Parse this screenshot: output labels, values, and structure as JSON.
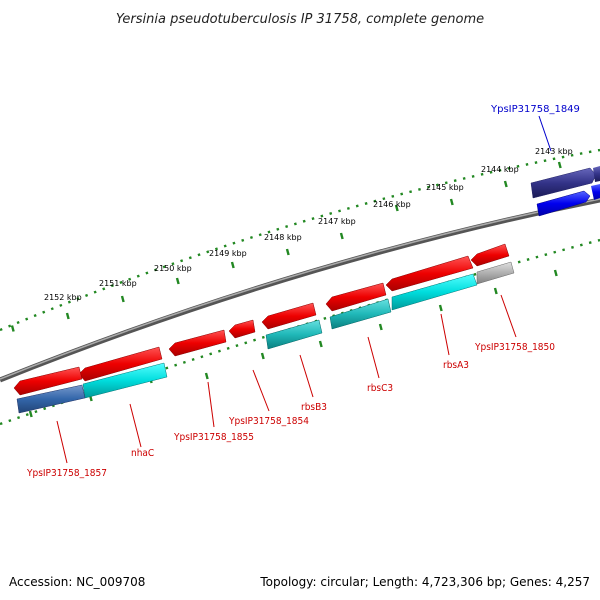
{
  "title": "Yersinia pseudotuberculosis IP 31758, complete genome",
  "footer": {
    "accession": "Accession: NC_009708",
    "topology": "Topology: circular; Length: 4,723,306 bp; Genes: 4,257"
  },
  "kbp_labels": [
    "2143 kbp",
    "2144 kbp",
    "2145 kbp",
    "2146 kbp",
    "2147 kbp",
    "2148 kbp",
    "2149 kbp",
    "2150 kbp",
    "2151 kbp",
    "2152 kbp"
  ],
  "gene_labels": [
    {
      "text": "YpsIP31758_1849",
      "color": "#0000cc"
    },
    {
      "text": "YpsIP31758_1850",
      "color": "#cc0000"
    },
    {
      "text": "rbsA3",
      "color": "#cc0000"
    },
    {
      "text": "rbsC3",
      "color": "#cc0000"
    },
    {
      "text": "rbsB3",
      "color": "#cc0000"
    },
    {
      "text": "YpsIP31758_1854",
      "color": "#cc0000"
    },
    {
      "text": "YpsIP31758_1855",
      "color": "#cc0000"
    },
    {
      "text": "nhaC",
      "color": "#cc0000"
    },
    {
      "text": "YpsIP31758_1857",
      "color": "#cc0000"
    }
  ],
  "colors": {
    "gene_red": "#ee0000",
    "cog_cyan": "#00cccc",
    "cog_blue": "#3366aa",
    "cog_gray": "#aaaaaa",
    "navy": "#333399",
    "blue": "#0000ee",
    "backbone": "#777777",
    "ticks": "#228822"
  }
}
